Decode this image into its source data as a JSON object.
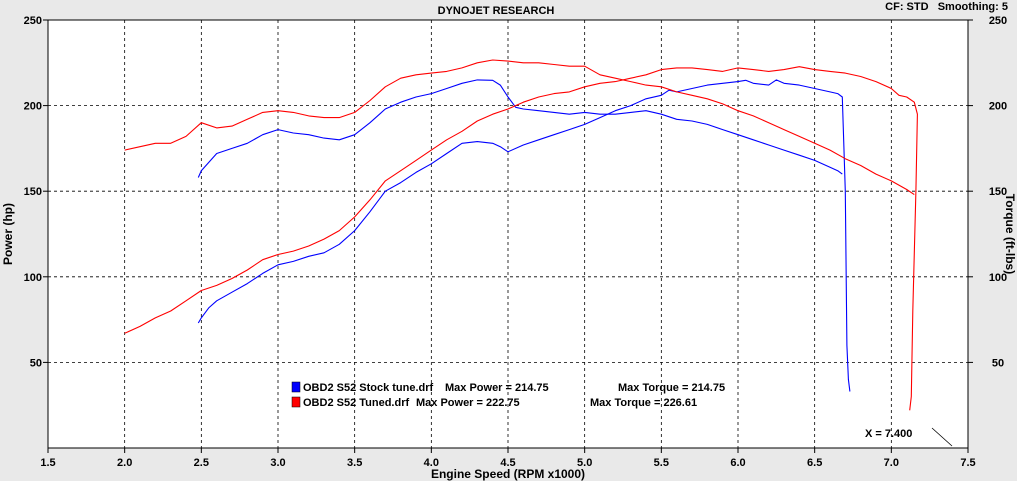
{
  "header": {
    "title": "DYNOJET RESEARCH",
    "settings": "CF: STD   Smoothing: 5"
  },
  "cursor_readout": "X = 7.400",
  "colors": {
    "background": "#e9e9e9",
    "plot_background": "#ffffff",
    "stock": "#0000ff",
    "tuned": "#ff0000",
    "grid": "#000000"
  },
  "chart_data": {
    "type": "line",
    "title": "DYNOJET RESEARCH",
    "xlabel": "Engine Speed (RPM x1000)",
    "ylabel": "Power (hp)",
    "y2label": "Torque (ft-lbs)",
    "xlim": [
      1.5,
      7.5
    ],
    "ylim": [
      0,
      250
    ],
    "y2lim": [
      0,
      250
    ],
    "grid": true,
    "x_ticks": [
      "1.5",
      "2.0",
      "2.5",
      "3.0",
      "3.5",
      "4.0",
      "4.5",
      "5.0",
      "5.5",
      "6.0",
      "6.5",
      "7.0",
      "7.5"
    ],
    "y_ticks": [
      "50",
      "100",
      "150",
      "200",
      "250"
    ],
    "legend": [
      {
        "icon": "stock",
        "file": "OBD2 S52 Stock tune.drf",
        "max_power_text": "Max Power = 214.75",
        "max_torque_text": "Max Torque = 214.75"
      },
      {
        "icon": "tuned",
        "file": "OBD2 S52 Tuned.drf",
        "max_power_text": "Max Power = 222.75",
        "max_torque_text": "Max Torque = 226.61"
      }
    ],
    "series": [
      {
        "key": "stock_power",
        "color": "#0000ff",
        "points": [
          [
            2.48,
            73
          ],
          [
            2.5,
            76
          ],
          [
            2.55,
            82
          ],
          [
            2.6,
            86
          ],
          [
            2.7,
            91
          ],
          [
            2.8,
            96
          ],
          [
            2.9,
            102
          ],
          [
            3.0,
            107
          ],
          [
            3.1,
            109
          ],
          [
            3.2,
            112
          ],
          [
            3.3,
            114
          ],
          [
            3.4,
            119
          ],
          [
            3.5,
            127
          ],
          [
            3.6,
            138
          ],
          [
            3.7,
            150
          ],
          [
            3.8,
            155
          ],
          [
            3.9,
            161
          ],
          [
            4.0,
            166
          ],
          [
            4.1,
            172
          ],
          [
            4.2,
            178
          ],
          [
            4.3,
            179
          ],
          [
            4.4,
            178
          ],
          [
            4.45,
            176
          ],
          [
            4.5,
            173
          ],
          [
            4.6,
            177
          ],
          [
            4.7,
            180
          ],
          [
            4.8,
            183
          ],
          [
            4.9,
            186
          ],
          [
            5.0,
            189
          ],
          [
            5.1,
            193
          ],
          [
            5.2,
            197
          ],
          [
            5.3,
            200
          ],
          [
            5.4,
            204
          ],
          [
            5.5,
            206
          ],
          [
            5.55,
            209
          ],
          [
            5.6,
            208
          ],
          [
            5.7,
            210
          ],
          [
            5.8,
            212
          ],
          [
            5.9,
            213
          ],
          [
            6.0,
            214
          ],
          [
            6.05,
            214.75
          ],
          [
            6.1,
            213
          ],
          [
            6.2,
            212
          ],
          [
            6.25,
            215
          ],
          [
            6.3,
            213
          ],
          [
            6.4,
            212
          ],
          [
            6.5,
            210
          ],
          [
            6.6,
            208
          ],
          [
            6.65,
            207
          ],
          [
            6.68,
            205
          ],
          [
            6.7,
            150
          ],
          [
            6.71,
            60
          ],
          [
            6.72,
            40
          ],
          [
            6.73,
            33
          ]
        ]
      },
      {
        "key": "stock_torque",
        "color": "#0000ff",
        "points": [
          [
            2.48,
            158
          ],
          [
            2.5,
            162
          ],
          [
            2.55,
            167
          ],
          [
            2.6,
            172
          ],
          [
            2.7,
            175
          ],
          [
            2.8,
            178
          ],
          [
            2.9,
            183
          ],
          [
            3.0,
            186
          ],
          [
            3.1,
            184
          ],
          [
            3.2,
            183
          ],
          [
            3.3,
            181
          ],
          [
            3.4,
            180
          ],
          [
            3.5,
            183
          ],
          [
            3.6,
            190
          ],
          [
            3.7,
            198
          ],
          [
            3.8,
            202
          ],
          [
            3.9,
            205
          ],
          [
            4.0,
            207
          ],
          [
            4.1,
            210
          ],
          [
            4.2,
            213
          ],
          [
            4.3,
            215
          ],
          [
            4.4,
            214.75
          ],
          [
            4.45,
            212
          ],
          [
            4.5,
            205
          ],
          [
            4.55,
            199
          ],
          [
            4.6,
            198
          ],
          [
            4.7,
            197
          ],
          [
            4.8,
            196
          ],
          [
            4.9,
            195
          ],
          [
            5.0,
            196
          ],
          [
            5.1,
            195
          ],
          [
            5.2,
            195
          ],
          [
            5.3,
            196
          ],
          [
            5.4,
            197
          ],
          [
            5.5,
            195
          ],
          [
            5.6,
            192
          ],
          [
            5.7,
            191
          ],
          [
            5.8,
            189
          ],
          [
            5.9,
            186
          ],
          [
            6.0,
            183
          ],
          [
            6.1,
            180
          ],
          [
            6.2,
            177
          ],
          [
            6.3,
            174
          ],
          [
            6.4,
            171
          ],
          [
            6.5,
            168
          ],
          [
            6.6,
            164
          ],
          [
            6.65,
            162
          ],
          [
            6.68,
            160
          ]
        ]
      },
      {
        "key": "tuned_power",
        "color": "#ff0000",
        "points": [
          [
            2.0,
            67
          ],
          [
            2.1,
            71
          ],
          [
            2.2,
            76
          ],
          [
            2.3,
            80
          ],
          [
            2.4,
            86
          ],
          [
            2.5,
            92
          ],
          [
            2.6,
            95
          ],
          [
            2.7,
            99
          ],
          [
            2.8,
            104
          ],
          [
            2.9,
            110
          ],
          [
            3.0,
            113
          ],
          [
            3.1,
            115
          ],
          [
            3.2,
            118
          ],
          [
            3.3,
            122
          ],
          [
            3.4,
            127
          ],
          [
            3.5,
            135
          ],
          [
            3.6,
            145
          ],
          [
            3.7,
            156
          ],
          [
            3.8,
            162
          ],
          [
            3.9,
            168
          ],
          [
            4.0,
            174
          ],
          [
            4.1,
            180
          ],
          [
            4.2,
            185
          ],
          [
            4.3,
            191
          ],
          [
            4.4,
            195
          ],
          [
            4.5,
            198
          ],
          [
            4.6,
            202
          ],
          [
            4.7,
            205
          ],
          [
            4.8,
            207
          ],
          [
            4.9,
            208
          ],
          [
            5.0,
            211
          ],
          [
            5.1,
            213
          ],
          [
            5.2,
            214
          ],
          [
            5.3,
            216
          ],
          [
            5.4,
            218
          ],
          [
            5.5,
            221
          ],
          [
            5.6,
            222
          ],
          [
            5.7,
            222
          ],
          [
            5.8,
            221
          ],
          [
            5.9,
            220
          ],
          [
            6.0,
            222
          ],
          [
            6.1,
            221
          ],
          [
            6.2,
            220
          ],
          [
            6.3,
            221
          ],
          [
            6.4,
            222.75
          ],
          [
            6.5,
            221
          ],
          [
            6.6,
            220
          ],
          [
            6.7,
            219
          ],
          [
            6.8,
            217
          ],
          [
            6.9,
            214
          ],
          [
            7.0,
            210
          ],
          [
            7.05,
            206
          ],
          [
            7.1,
            205
          ],
          [
            7.15,
            202
          ],
          [
            7.17,
            195
          ],
          [
            7.16,
            150
          ],
          [
            7.14,
            80
          ],
          [
            7.13,
            30
          ],
          [
            7.12,
            22
          ]
        ]
      },
      {
        "key": "tuned_torque",
        "color": "#ff0000",
        "points": [
          [
            2.0,
            174
          ],
          [
            2.1,
            176
          ],
          [
            2.2,
            178
          ],
          [
            2.3,
            178
          ],
          [
            2.4,
            182
          ],
          [
            2.5,
            190
          ],
          [
            2.6,
            187
          ],
          [
            2.7,
            188
          ],
          [
            2.8,
            192
          ],
          [
            2.9,
            196
          ],
          [
            3.0,
            197
          ],
          [
            3.1,
            196
          ],
          [
            3.2,
            194
          ],
          [
            3.3,
            193
          ],
          [
            3.4,
            193
          ],
          [
            3.5,
            196
          ],
          [
            3.6,
            203
          ],
          [
            3.7,
            211
          ],
          [
            3.8,
            216
          ],
          [
            3.9,
            218
          ],
          [
            4.0,
            219
          ],
          [
            4.1,
            220
          ],
          [
            4.2,
            222
          ],
          [
            4.3,
            225
          ],
          [
            4.4,
            226.61
          ],
          [
            4.5,
            226
          ],
          [
            4.6,
            225
          ],
          [
            4.7,
            225
          ],
          [
            4.8,
            224
          ],
          [
            4.9,
            223
          ],
          [
            5.0,
            223
          ],
          [
            5.1,
            218
          ],
          [
            5.2,
            216
          ],
          [
            5.3,
            214
          ],
          [
            5.4,
            212
          ],
          [
            5.5,
            211
          ],
          [
            5.6,
            208
          ],
          [
            5.7,
            206
          ],
          [
            5.8,
            204
          ],
          [
            5.9,
            201
          ],
          [
            6.0,
            197
          ],
          [
            6.1,
            194
          ],
          [
            6.2,
            190
          ],
          [
            6.3,
            186
          ],
          [
            6.4,
            182
          ],
          [
            6.5,
            178
          ],
          [
            6.6,
            174
          ],
          [
            6.7,
            169
          ],
          [
            6.8,
            165
          ],
          [
            6.9,
            160
          ],
          [
            7.0,
            156
          ],
          [
            7.1,
            151
          ],
          [
            7.15,
            148
          ]
        ]
      }
    ]
  }
}
